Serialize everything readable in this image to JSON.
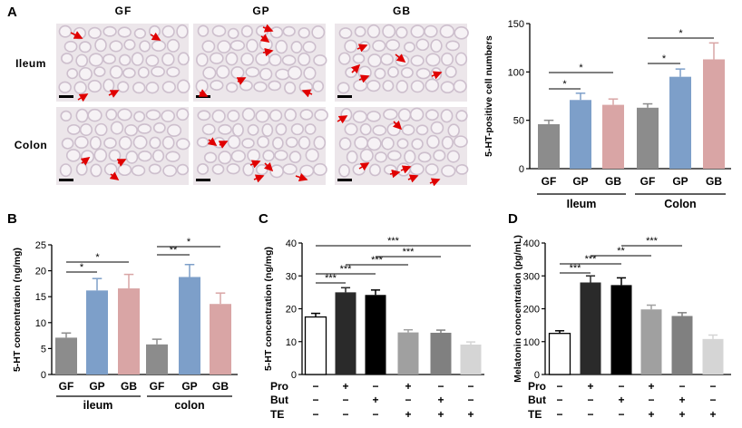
{
  "panel_labels": {
    "a": "A",
    "b": "B",
    "c": "C",
    "d": "D"
  },
  "micro": {
    "col_headers": [
      "GF",
      "GP",
      "GB"
    ],
    "row_labels": [
      "Ileum",
      "Colon"
    ]
  },
  "colors": {
    "gf": "#8c8c8c",
    "gp": "#7d9fc9",
    "gb": "#d9a5a5",
    "arrow": "#e00000",
    "tissue_bg": "#ece6ea",
    "crypt": "#cdbfcd",
    "c_bars": [
      "#ffffff",
      "#2a2a2a",
      "#000000",
      "#a0a0a0",
      "#808080",
      "#d5d5d5"
    ]
  },
  "chart_data": [
    {
      "id": "A",
      "type": "bar",
      "ylabel": "5-HT-positive cell numbers",
      "ylim": [
        0,
        150
      ],
      "yticks": [
        0,
        50,
        100,
        150
      ],
      "categories": [
        "GF",
        "GP",
        "GB",
        "GF",
        "GP",
        "GB"
      ],
      "groups": [
        "Ileum",
        "Colon"
      ],
      "values": [
        46,
        71,
        66,
        63,
        95,
        113
      ],
      "errors": [
        4,
        7,
        6,
        4,
        8,
        17
      ],
      "significance": [
        {
          "from": 0,
          "to": 1,
          "label": "*"
        },
        {
          "from": 0,
          "to": 2,
          "label": "*"
        },
        {
          "from": 3,
          "to": 4,
          "label": "*"
        },
        {
          "from": 3,
          "to": 5,
          "label": "*"
        }
      ]
    },
    {
      "id": "B",
      "type": "bar",
      "ylabel": "5-HT concentration (ng/mg)",
      "ylim": [
        0,
        25
      ],
      "yticks": [
        0,
        5,
        10,
        15,
        20,
        25
      ],
      "categories": [
        "GF",
        "GP",
        "GB",
        "GF",
        "GP",
        "GB"
      ],
      "groups": [
        "ileum",
        "colon"
      ],
      "values": [
        7.1,
        16.2,
        16.6,
        5.8,
        18.8,
        13.6
      ],
      "errors": [
        0.9,
        2.3,
        2.7,
        1.0,
        2.4,
        2.1
      ],
      "significance": [
        {
          "from": 0,
          "to": 1,
          "label": "*"
        },
        {
          "from": 0,
          "to": 2,
          "label": "*"
        },
        {
          "from": 3,
          "to": 4,
          "label": "**"
        },
        {
          "from": 3,
          "to": 5,
          "label": "*"
        }
      ]
    },
    {
      "id": "C",
      "type": "bar",
      "ylabel": "5-HT concentration (ng/mg)",
      "ylim": [
        0,
        40
      ],
      "yticks": [
        0,
        10,
        20,
        30,
        40
      ],
      "values": [
        17.5,
        25.0,
        24.2,
        12.8,
        12.7,
        9.1
      ],
      "errors": [
        1.1,
        1.4,
        1.5,
        0.8,
        0.8,
        0.8
      ],
      "conditions": [
        {
          "name": "Pro",
          "signs": [
            "−",
            "+",
            "−",
            "+",
            "−",
            "−"
          ]
        },
        {
          "name": "But",
          "signs": [
            "−",
            "−",
            "+",
            "−",
            "+",
            "−"
          ]
        },
        {
          "name": "TE",
          "signs": [
            "−",
            "−",
            "−",
            "+",
            "+",
            "+"
          ]
        }
      ],
      "significance": [
        {
          "from": 0,
          "to": 1,
          "label": "***"
        },
        {
          "from": 0,
          "to": 2,
          "label": "***"
        },
        {
          "from": 1,
          "to": 3,
          "label": "***"
        },
        {
          "from": 2,
          "to": 4,
          "label": "***"
        },
        {
          "from": 0,
          "to": 5,
          "label": "***"
        }
      ]
    },
    {
      "id": "D",
      "type": "bar",
      "ylabel": "Melatonin concentration (pg/mL)",
      "ylim": [
        0,
        400
      ],
      "yticks": [
        0,
        100,
        200,
        300,
        400
      ],
      "values": [
        125,
        280,
        272,
        198,
        178,
        108
      ],
      "errors": [
        8,
        20,
        22,
        13,
        10,
        12
      ],
      "conditions": [
        {
          "name": "Pro",
          "signs": [
            "−",
            "+",
            "−",
            "+",
            "−",
            "−"
          ]
        },
        {
          "name": "But",
          "signs": [
            "−",
            "−",
            "+",
            "−",
            "+",
            "−"
          ]
        },
        {
          "name": "TE",
          "signs": [
            "−",
            "−",
            "−",
            "+",
            "+",
            "+"
          ]
        }
      ],
      "significance": [
        {
          "from": 0,
          "to": 1,
          "label": "***"
        },
        {
          "from": 0,
          "to": 2,
          "label": "***"
        },
        {
          "from": 1,
          "to": 3,
          "label": "**"
        },
        {
          "from": 2,
          "to": 4,
          "label": "***"
        }
      ]
    }
  ]
}
